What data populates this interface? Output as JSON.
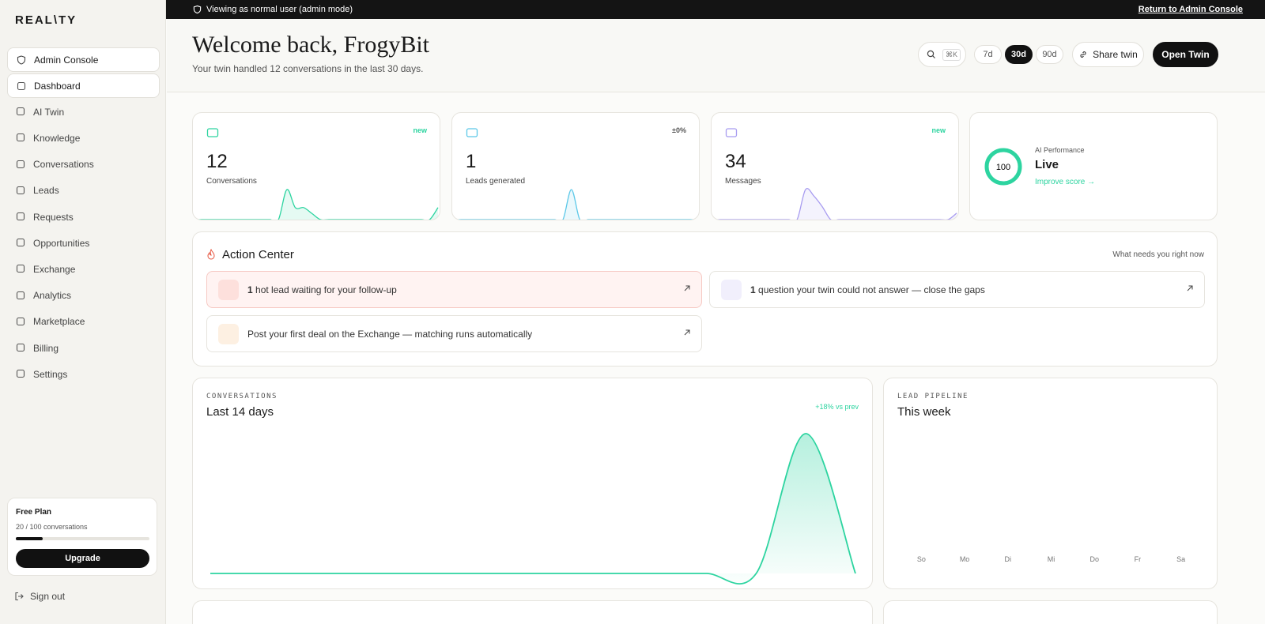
{
  "banner": {
    "text": "Viewing as normal user (admin mode)",
    "link": "Return to Admin Console"
  },
  "sidebar": {
    "logo": "REAL\\TY",
    "admin_console": "Admin Console",
    "nav": [
      "Dashboard",
      "AI Twin",
      "Knowledge",
      "Conversations",
      "Leads",
      "Requests",
      "Opportunities",
      "Exchange",
      "Analytics",
      "Marketplace",
      "Billing",
      "Settings"
    ],
    "active": 0,
    "plan": {
      "name": "Free Plan",
      "usage": {
        "value": 20,
        "max": 100,
        "label": "20 / 100 conversations"
      },
      "button": "Upgrade"
    },
    "sign_out": "Sign out"
  },
  "header": {
    "title": "Welcome back, FrogyBit",
    "subtitle": "Your twin handled 12 conversations in the last 30 days.",
    "shortcut": "⌘K",
    "ranges": [
      "7d",
      "30d",
      "90d"
    ],
    "active_range": 1,
    "share": "Share twin",
    "open": "Open Twin"
  },
  "stats": [
    {
      "value": 12,
      "label": "Conversations",
      "badge": "new",
      "color": "#2dd4a0",
      "trend": [
        0,
        0,
        0,
        0,
        0,
        0,
        0,
        0,
        0,
        0,
        0,
        5,
        2,
        2,
        1,
        0,
        0,
        0,
        0,
        0,
        0,
        0,
        0,
        0,
        0,
        0,
        0,
        0,
        0,
        2
      ]
    },
    {
      "value": 1,
      "label": "Leads generated",
      "badge": "±0%",
      "color": "#5cc8e8",
      "trend": [
        0,
        0,
        0,
        0,
        0,
        0,
        0,
        0,
        0,
        0,
        0,
        0,
        0,
        0,
        1,
        0,
        0,
        0,
        0,
        0,
        0,
        0,
        0,
        0,
        0,
        0,
        0,
        0,
        0,
        0
      ]
    },
    {
      "value": 34,
      "label": "Messages",
      "badge": "new",
      "color": "#a89cf0",
      "trend": [
        0,
        0,
        0,
        0,
        0,
        0,
        0,
        0,
        0,
        0,
        0,
        14,
        11,
        6,
        0,
        0,
        0,
        0,
        0,
        0,
        0,
        0,
        0,
        0,
        0,
        0,
        0,
        0,
        0,
        3
      ]
    }
  ],
  "performance": {
    "title": "AI Performance",
    "score": 100,
    "status": "Live",
    "link": "Improve score →"
  },
  "action_center": {
    "title": "Action Center",
    "hint": "What needs you right now",
    "items": [
      {
        "count": "1",
        "text": "hot lead waiting for your follow-up"
      },
      {
        "count": "1",
        "text": "question your twin could not answer — close the gaps"
      },
      {
        "text": "Post your first deal on the Exchange — matching runs automatically"
      }
    ]
  },
  "conversations_chart": {
    "type": "area",
    "eyebrow": "CONVERSATIONS",
    "title": "Last 14 days",
    "change": "+18% vs prev",
    "color": "#2dd4a0",
    "values": [
      0,
      0,
      0,
      0,
      0,
      0,
      0,
      0,
      0,
      0,
      0,
      0,
      12,
      0
    ]
  },
  "lead_pipeline": {
    "type": "bar",
    "eyebrow": "LEAD PIPELINE",
    "title": "This week",
    "color": "#2dd4a0",
    "categories": [
      "So",
      "Mo",
      "Di",
      "Mi",
      "Do",
      "Fr",
      "Sa"
    ],
    "values": [
      0,
      0,
      0,
      0,
      0,
      0,
      0
    ]
  }
}
